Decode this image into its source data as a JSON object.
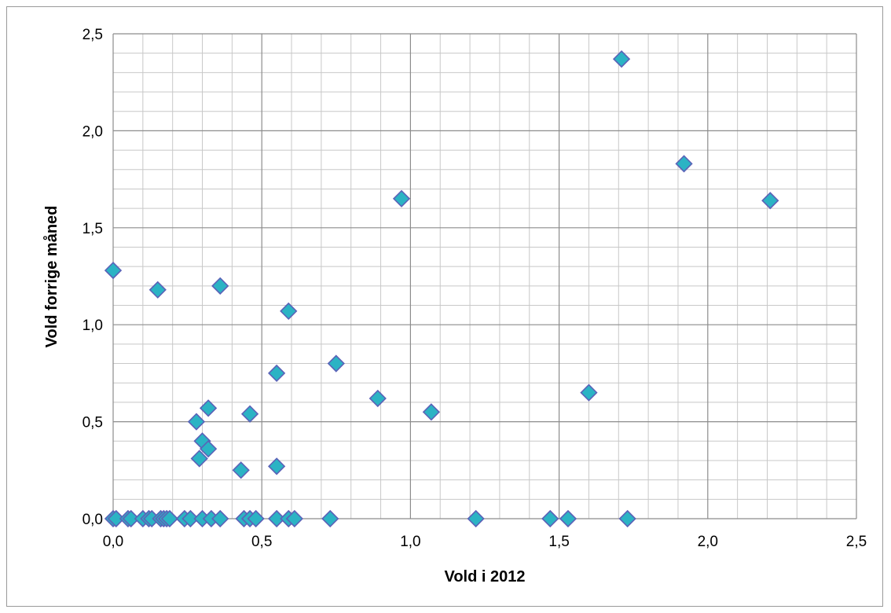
{
  "chart_data": {
    "type": "scatter",
    "title": "",
    "xlabel": "Vold i 2012",
    "ylabel": "Vold forrige måned",
    "xlim": [
      0,
      2.5
    ],
    "ylim": [
      0,
      2.5
    ],
    "x_major_ticks": [
      "0,0",
      "0,5",
      "1,0",
      "1,5",
      "2,0",
      "2,5"
    ],
    "y_major_ticks": [
      "0,0",
      "0,5",
      "1,0",
      "1,5",
      "2,0",
      "2,5"
    ],
    "grid": true,
    "legend": "none",
    "marker": "diamond",
    "colors": {
      "marker_fill": "#2bb3c4",
      "marker_edge": "#5b62b8",
      "grid_minor": "#c8c8c8",
      "grid_major": "#8c8c8c"
    },
    "points": [
      {
        "x": 0.0,
        "y": 1.28
      },
      {
        "x": 0.15,
        "y": 1.18
      },
      {
        "x": 0.36,
        "y": 1.2
      },
      {
        "x": 0.59,
        "y": 1.07
      },
      {
        "x": 0.55,
        "y": 0.75
      },
      {
        "x": 0.75,
        "y": 0.8
      },
      {
        "x": 0.28,
        "y": 0.5
      },
      {
        "x": 0.32,
        "y": 0.57
      },
      {
        "x": 0.46,
        "y": 0.54
      },
      {
        "x": 0.3,
        "y": 0.4
      },
      {
        "x": 0.32,
        "y": 0.36
      },
      {
        "x": 0.29,
        "y": 0.31
      },
      {
        "x": 0.43,
        "y": 0.25
      },
      {
        "x": 0.55,
        "y": 0.27
      },
      {
        "x": 0.89,
        "y": 0.62
      },
      {
        "x": 0.97,
        "y": 1.65
      },
      {
        "x": 1.07,
        "y": 0.55
      },
      {
        "x": 1.6,
        "y": 0.65
      },
      {
        "x": 1.71,
        "y": 2.37
      },
      {
        "x": 1.92,
        "y": 1.83
      },
      {
        "x": 2.21,
        "y": 1.64
      },
      {
        "x": 0.0,
        "y": 0.0
      },
      {
        "x": 0.01,
        "y": 0.0
      },
      {
        "x": 0.05,
        "y": 0.0
      },
      {
        "x": 0.06,
        "y": 0.0
      },
      {
        "x": 0.1,
        "y": 0.0
      },
      {
        "x": 0.12,
        "y": 0.0
      },
      {
        "x": 0.13,
        "y": 0.0
      },
      {
        "x": 0.16,
        "y": 0.0
      },
      {
        "x": 0.17,
        "y": 0.0
      },
      {
        "x": 0.18,
        "y": 0.0
      },
      {
        "x": 0.19,
        "y": 0.0
      },
      {
        "x": 0.24,
        "y": 0.0
      },
      {
        "x": 0.26,
        "y": 0.0
      },
      {
        "x": 0.3,
        "y": 0.0
      },
      {
        "x": 0.33,
        "y": 0.0
      },
      {
        "x": 0.36,
        "y": 0.0
      },
      {
        "x": 0.44,
        "y": 0.0
      },
      {
        "x": 0.46,
        "y": 0.0
      },
      {
        "x": 0.48,
        "y": 0.0
      },
      {
        "x": 0.55,
        "y": 0.0
      },
      {
        "x": 0.59,
        "y": 0.0
      },
      {
        "x": 0.61,
        "y": 0.0
      },
      {
        "x": 0.73,
        "y": 0.0
      },
      {
        "x": 1.22,
        "y": 0.0
      },
      {
        "x": 1.47,
        "y": 0.0
      },
      {
        "x": 1.53,
        "y": 0.0
      },
      {
        "x": 1.73,
        "y": 0.0
      }
    ]
  }
}
